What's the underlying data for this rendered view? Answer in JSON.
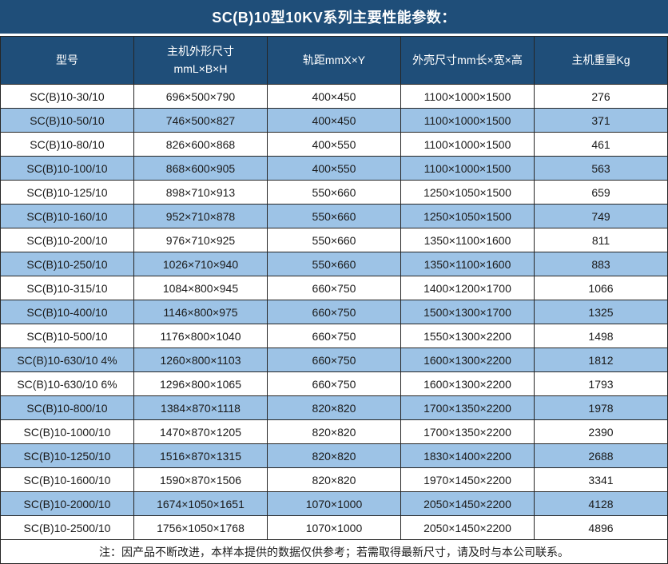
{
  "title": "SC(B)10型10KV系列主要性能参数：",
  "table": {
    "columns": [
      "型号",
      "主机外形尺寸\nmmL×B×H",
      "轨距mmX×Y",
      "外壳尺寸mm长×宽×高",
      "主机重量Kg"
    ],
    "rows": [
      [
        "SC(B)10-30/10",
        "696×500×790",
        "400×450",
        "1100×1000×1500",
        "276"
      ],
      [
        "SC(B)10-50/10",
        "746×500×827",
        "400×450",
        "1100×1000×1500",
        "371"
      ],
      [
        "SC(B)10-80/10",
        "826×600×868",
        "400×550",
        "1100×1000×1500",
        "461"
      ],
      [
        "SC(B)10-100/10",
        "868×600×905",
        "400×550",
        "1100×1000×1500",
        "563"
      ],
      [
        "SC(B)10-125/10",
        "898×710×913",
        "550×660",
        "1250×1050×1500",
        "659"
      ],
      [
        "SC(B)10-160/10",
        "952×710×878",
        "550×660",
        "1250×1050×1500",
        "749"
      ],
      [
        "SC(B)10-200/10",
        "976×710×925",
        "550×660",
        "1350×1100×1600",
        "811"
      ],
      [
        "SC(B)10-250/10",
        "1026×710×940",
        "550×660",
        "1350×1100×1600",
        "883"
      ],
      [
        "SC(B)10-315/10",
        "1084×800×945",
        "660×750",
        "1400×1200×1700",
        "1066"
      ],
      [
        "SC(B)10-400/10",
        "1146×800×975",
        "660×750",
        "1500×1300×1700",
        "1325"
      ],
      [
        "SC(B)10-500/10",
        "1176×800×1040",
        "660×750",
        "1550×1300×2200",
        "1498"
      ],
      [
        "SC(B)10-630/10 4%",
        "1260×800×1103",
        "660×750",
        "1600×1300×2200",
        "1812"
      ],
      [
        "SC(B)10-630/10 6%",
        "1296×800×1065",
        "660×750",
        "1600×1300×2200",
        "1793"
      ],
      [
        "SC(B)10-800/10",
        "1384×870×1118",
        "820×820",
        "1700×1350×2200",
        "1978"
      ],
      [
        "SC(B)10-1000/10",
        "1470×870×1205",
        "820×820",
        "1700×1350×2200",
        "2390"
      ],
      [
        "SC(B)10-1250/10",
        "1516×870×1315",
        "820×820",
        "1830×1400×2200",
        "2688"
      ],
      [
        "SC(B)10-1600/10",
        "1590×870×1506",
        "820×820",
        "1970×1450×2200",
        "3341"
      ],
      [
        "SC(B)10-2000/10",
        "1674×1050×1651",
        "1070×1000",
        "2050×1450×2200",
        "4128"
      ],
      [
        "SC(B)10-2500/10",
        "1756×1050×1768",
        "1070×1000",
        "2050×1450×2200",
        "4896"
      ]
    ]
  },
  "note": "注：因产品不断改进，本样本提供的数据仅供参考；若需取得最新尺寸，请及时与本公司联系。",
  "colors": {
    "header_bg": "#1F4E79",
    "row_bg": "#FFFFFF",
    "row_alt_bg": "#9DC3E6",
    "border": "#262626",
    "header_text": "#FFFFFF",
    "body_text": "#1A1A1A"
  }
}
